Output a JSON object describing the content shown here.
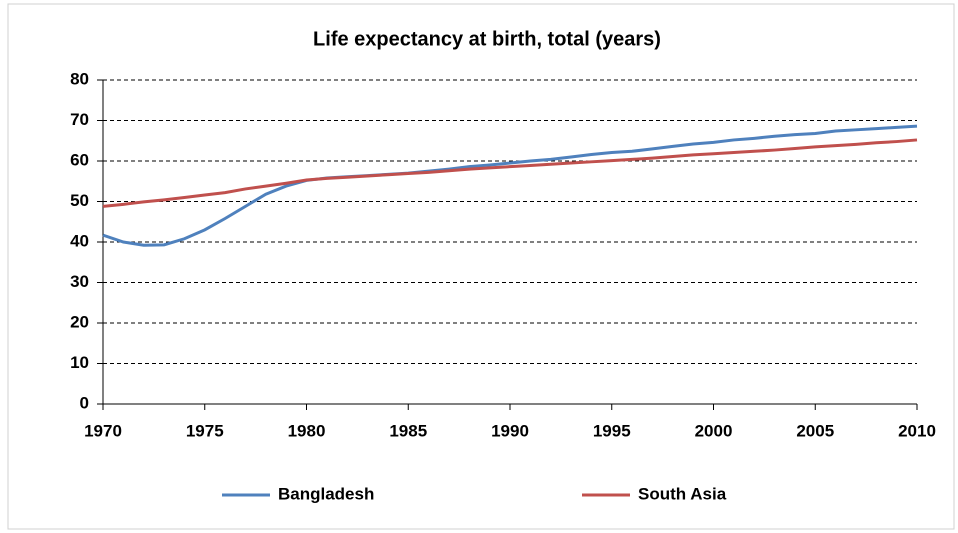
{
  "chart_data": {
    "type": "line",
    "title": "Life expectancy at birth, total (years)",
    "x": [
      1970,
      1971,
      1972,
      1973,
      1974,
      1975,
      1976,
      1977,
      1978,
      1979,
      1980,
      1981,
      1982,
      1983,
      1984,
      1985,
      1986,
      1987,
      1988,
      1989,
      1990,
      1991,
      1992,
      1993,
      1994,
      1995,
      1996,
      1997,
      1998,
      1999,
      2000,
      2001,
      2002,
      2003,
      2004,
      2005,
      2006,
      2007,
      2008,
      2009,
      2010
    ],
    "series": [
      {
        "name": "Bangladesh",
        "color": "#4f81bd",
        "values": [
          41.7,
          40,
          39.2,
          39.3,
          40.8,
          43,
          45.8,
          48.8,
          51.8,
          53.8,
          55.2,
          55.8,
          56.1,
          56.4,
          56.7,
          57,
          57.5,
          58,
          58.6,
          59,
          59.5,
          60,
          60.4,
          61,
          61.6,
          62.1,
          62.4,
          63,
          63.6,
          64.2,
          64.6,
          65.2,
          65.6,
          66.1,
          66.5,
          66.8,
          67.4,
          67.7,
          68,
          68.3,
          68.6
        ]
      },
      {
        "name": "South Asia",
        "color": "#c0504d",
        "values": [
          48.8,
          49.3,
          49.9,
          50.4,
          51,
          51.6,
          52.2,
          53.1,
          53.8,
          54.5,
          55.3,
          55.7,
          56,
          56.3,
          56.6,
          56.9,
          57.2,
          57.6,
          58,
          58.3,
          58.6,
          58.9,
          59.2,
          59.5,
          59.8,
          60.1,
          60.4,
          60.7,
          61.1,
          61.5,
          61.8,
          62.1,
          62.4,
          62.7,
          63.1,
          63.5,
          63.8,
          64.1,
          64.5,
          64.8,
          65.2
        ]
      }
    ],
    "xlim": [
      1970,
      2010
    ],
    "xticks": [
      1970,
      1975,
      1980,
      1985,
      1990,
      1995,
      2000,
      2005,
      2010
    ],
    "ylim": [
      0,
      80
    ],
    "yticks": [
      0,
      10,
      20,
      30,
      40,
      50,
      60,
      70,
      80
    ],
    "grid": true,
    "legend": "bottom"
  }
}
